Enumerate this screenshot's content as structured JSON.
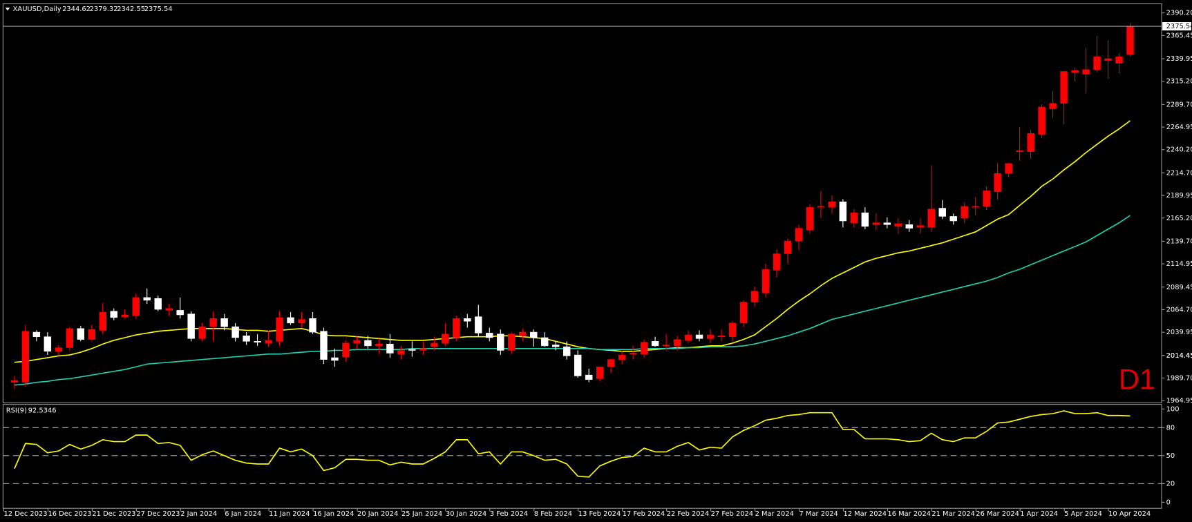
{
  "chart_data": [
    {
      "type": "candlestick",
      "title": "XAUUSD,Daily",
      "watermark": "D1",
      "categories": [
        "12 Dec 2023",
        null,
        null,
        null,
        "16 Dec 2023",
        null,
        null,
        null,
        "21 Dec 2023",
        null,
        null,
        null,
        "27 Dec 2023",
        null,
        null,
        null,
        "2 Jan 2024",
        null,
        null,
        null,
        "6 Jan 2024",
        null,
        null,
        null,
        "11 Jan 2024",
        null,
        null,
        null,
        "16 Jan 2024",
        null,
        null,
        null,
        "20 Jan 2024",
        null,
        null,
        null,
        "25 Jan 2024",
        null,
        null,
        null,
        "30 Jan 2024",
        null,
        null,
        null,
        "3 Feb 2024",
        null,
        null,
        null,
        "8 Feb 2024",
        null,
        null,
        null,
        "13 Feb 2024",
        null,
        null,
        null,
        "17 Feb 2024",
        null,
        null,
        null,
        "22 Feb 2024",
        null,
        null,
        null,
        "27 Feb 2024",
        null,
        null,
        null,
        "2 Mar 2024",
        null,
        null,
        null,
        "7 Mar 2024",
        null,
        null,
        null,
        "12 Mar 2024",
        null,
        null,
        null,
        "16 Mar 2024",
        null,
        null,
        null,
        "21 Mar 2024",
        null,
        null,
        null,
        "26 Mar 2024",
        null,
        null,
        null,
        "1 Apr 2024",
        null,
        null,
        null,
        "5 Apr 2024",
        null,
        null,
        null,
        "10 Apr 2024",
        null
      ],
      "open": [
        1985,
        1985,
        2040,
        2035,
        2019,
        2023,
        2044,
        2032,
        2042,
        2063,
        2057,
        2058,
        2078,
        2077,
        2064,
        2064,
        2060,
        2033,
        2046,
        2055,
        2046,
        2036,
        2030,
        2028,
        2030,
        2056,
        2050,
        2055,
        2041,
        2012,
        2013,
        2028,
        2031,
        2025,
        2027,
        2016,
        2021,
        2020,
        2024,
        2028,
        2034,
        2055,
        2057,
        2039,
        2038,
        2020,
        2036,
        2040,
        2034,
        2026,
        2024,
        2015,
        1993,
        1989,
        2002,
        2010,
        2016,
        2016,
        2030,
        2025,
        2025,
        2031,
        2037,
        2033,
        2035,
        2035,
        2050,
        2073,
        2083,
        2108,
        2126,
        2140,
        2152,
        2177,
        2177,
        2183,
        2160,
        2171,
        2158,
        2160,
        2156,
        2158,
        2155,
        2155,
        2176,
        2167,
        2165,
        2177,
        2178,
        2194,
        2214,
        2238,
        2238,
        2257,
        2285,
        2291,
        2325,
        2323,
        2328,
        2338,
        2335,
        2344.62
      ],
      "high": [
        1992,
        2048,
        2042,
        2040,
        2026,
        2046,
        2047,
        2048,
        2072,
        2066,
        2065,
        2082,
        2088,
        2080,
        2071,
        2078,
        2063,
        2050,
        2063,
        2060,
        2050,
        2040,
        2038,
        2042,
        2063,
        2062,
        2062,
        2062,
        2045,
        2022,
        2031,
        2036,
        2036,
        2033,
        2038,
        2025,
        2030,
        2030,
        2035,
        2050,
        2058,
        2060,
        2070,
        2045,
        2043,
        2040,
        2044,
        2043,
        2040,
        2030,
        2030,
        2020,
        2000,
        2000,
        2011,
        2020,
        2025,
        2032,
        2035,
        2038,
        2036,
        2042,
        2042,
        2043,
        2043,
        2052,
        2075,
        2090,
        2115,
        2131,
        2143,
        2158,
        2180,
        2195,
        2190,
        2186,
        2175,
        2177,
        2170,
        2166,
        2165,
        2163,
        2165,
        2223,
        2185,
        2170,
        2182,
        2188,
        2200,
        2225,
        2226,
        2265,
        2262,
        2290,
        2305,
        2326,
        2330,
        2352,
        2365,
        2360,
        2346,
        2379.32
      ],
      "low": [
        1978,
        1980,
        2030,
        2015,
        2015,
        2020,
        2030,
        2030,
        2038,
        2053,
        2055,
        2055,
        2071,
        2063,
        2058,
        2055,
        2030,
        2030,
        2030,
        2042,
        2030,
        2026,
        2025,
        2024,
        2025,
        2048,
        2045,
        2038,
        2005,
        2002,
        2008,
        2022,
        2022,
        2016,
        2012,
        2010,
        2013,
        2015,
        2020,
        2025,
        2030,
        2045,
        2035,
        2030,
        2015,
        2016,
        2030,
        2024,
        2024,
        2020,
        2010,
        1990,
        1985,
        1986,
        1995,
        2005,
        2010,
        2012,
        2024,
        2020,
        2020,
        2028,
        2030,
        2028,
        2030,
        2030,
        2046,
        2068,
        2078,
        2100,
        2115,
        2130,
        2148,
        2165,
        2170,
        2155,
        2155,
        2153,
        2152,
        2154,
        2148,
        2150,
        2148,
        2150,
        2164,
        2158,
        2160,
        2168,
        2174,
        2185,
        2210,
        2228,
        2230,
        2253,
        2275,
        2268,
        2315,
        2302,
        2325,
        2318,
        2324,
        2342.55
      ],
      "close": [
        1987,
        2041,
        2035,
        2019,
        2023,
        2044,
        2032,
        2043,
        2062,
        2056,
        2059,
        2078,
        2075,
        2065,
        2066,
        2059,
        2033,
        2046,
        2055,
        2046,
        2034,
        2030,
        2029,
        2031,
        2056,
        2050,
        2054,
        2040,
        2010,
        2009,
        2028,
        2031,
        2025,
        2027,
        2017,
        2020,
        2020,
        2022,
        2028,
        2038,
        2055,
        2052,
        2039,
        2034,
        2020,
        2038,
        2040,
        2034,
        2025,
        2024,
        2014,
        1992,
        1988,
        2002,
        2010,
        2015,
        2017,
        2029,
        2025,
        2026,
        2032,
        2037,
        2033,
        2037,
        2036,
        2050,
        2073,
        2085,
        2109,
        2126,
        2140,
        2154,
        2177,
        2178,
        2183,
        2162,
        2171,
        2156,
        2160,
        2158,
        2159,
        2154,
        2157,
        2175,
        2167,
        2162,
        2178,
        2178,
        2195,
        2214,
        2225,
        2239,
        2258,
        2287,
        2291,
        2326,
        2327,
        2328,
        2342,
        2340,
        2342,
        2375.54
      ],
      "up_color": "#ff0000",
      "down_color": "#ffffff",
      "moving_averages": [
        {
          "color": "#ffff00",
          "values": [
            2007,
            2008,
            2010,
            2012,
            2014,
            2015,
            2018,
            2022,
            2027,
            2031,
            2034,
            2037,
            2039,
            2041,
            2042,
            2043,
            2044,
            2044,
            2044,
            2044,
            2043,
            2042,
            2042,
            2041,
            2042,
            2043,
            2044,
            2041,
            2037,
            2036,
            2036,
            2035,
            2034,
            2033,
            2032,
            2031,
            2031,
            2031,
            2032,
            2033,
            2034,
            2035,
            2035,
            2035,
            2036,
            2036,
            2035,
            2034,
            2033,
            2030,
            2027,
            2024,
            2022,
            2021,
            2020,
            2019,
            2019,
            2020,
            2021,
            2022,
            2023,
            2023,
            2024,
            2025,
            2025,
            2028,
            2032,
            2037,
            2046,
            2055,
            2065,
            2074,
            2082,
            2091,
            2099,
            2105,
            2111,
            2117,
            2121,
            2124,
            2127,
            2129,
            2132,
            2135,
            2138,
            2142,
            2146,
            2150,
            2157,
            2164,
            2169,
            2179,
            2189,
            2200,
            2208,
            2218,
            2227,
            2237,
            2246,
            2255,
            2263,
            2272
          ]
        },
        {
          "color": "#20d0b0",
          "values": [
            1982,
            1983,
            1985,
            1986,
            1988,
            1989,
            1991,
            1993,
            1995,
            1997,
            1999,
            2002,
            2005,
            2006,
            2007,
            2008,
            2009,
            2010,
            2011,
            2012,
            2013,
            2014,
            2015,
            2016,
            2016,
            2017,
            2018,
            2019,
            2019,
            2020,
            2020,
            2021,
            2021,
            2021,
            2021,
            2021,
            2022,
            2022,
            2022,
            2022,
            2022,
            2022,
            2022,
            2022,
            2022,
            2022,
            2022,
            2022,
            2022,
            2022,
            2022,
            2022,
            2022,
            2021,
            2021,
            2021,
            2021,
            2022,
            2022,
            2022,
            2022,
            2023,
            2023,
            2024,
            2024,
            2024,
            2025,
            2027,
            2030,
            2033,
            2036,
            2040,
            2044,
            2049,
            2054,
            2057,
            2060,
            2063,
            2066,
            2069,
            2072,
            2075,
            2078,
            2081,
            2084,
            2087,
            2090,
            2093,
            2096,
            2100,
            2105,
            2109,
            2114,
            2119,
            2124,
            2129,
            2134,
            2139,
            2146,
            2153,
            2160,
            2168
          ]
        }
      ],
      "ylim": [
        1962.45,
        2399.35
      ],
      "yticks": [
        {
          "value": 2390.2,
          "label": "2390.20"
        },
        2365.45,
        2339.95,
        {
          "value": 2315.2,
          "label": "2315.20"
        },
        {
          "value": 2289.7,
          "label": "2289.70"
        },
        2264.95,
        {
          "value": 2240.2,
          "label": "2240.20"
        },
        {
          "value": 2214.7,
          "label": "2214.70"
        },
        2189.95,
        {
          "value": 2165.2,
          "label": "2165.20"
        },
        {
          "value": 2139.7,
          "label": "2139.70"
        },
        2114.95,
        2089.45,
        {
          "value": 2064.7,
          "label": "2064.70"
        },
        2039.95,
        2014.45,
        {
          "value": 1989.7,
          "label": "1989.70"
        },
        2014.45,
        1964.95
      ],
      "last_price_line": true
    },
    {
      "type": "line",
      "title": "RSI(9)",
      "color": "#ffff00",
      "values": [
        36,
        63,
        62,
        53,
        55,
        62,
        57,
        61,
        67,
        65,
        65,
        72,
        72,
        63,
        64,
        61,
        45,
        51,
        55,
        50,
        45,
        42,
        41,
        41,
        58,
        54,
        57,
        50,
        34,
        37,
        46,
        46,
        45,
        45,
        40,
        43,
        41,
        41,
        47,
        54,
        67,
        67,
        52,
        54,
        41,
        54,
        54,
        50,
        45,
        46,
        41,
        28,
        27,
        39,
        44,
        48,
        49,
        58,
        54,
        54,
        60,
        64,
        56,
        59,
        58,
        70,
        77,
        82,
        88,
        90,
        93,
        94,
        96,
        96,
        96,
        78,
        78,
        68,
        68,
        68,
        67,
        65,
        66,
        74,
        67,
        65,
        69,
        69,
        76,
        85,
        86,
        89,
        92,
        94,
        95,
        98,
        95,
        95,
        96,
        93,
        93,
        92.5346
      ],
      "ylim": [
        -5.7,
        104.1
      ],
      "yticks": [
        100,
        80,
        50,
        20,
        0
      ],
      "grid": "dashed"
    }
  ]
}
